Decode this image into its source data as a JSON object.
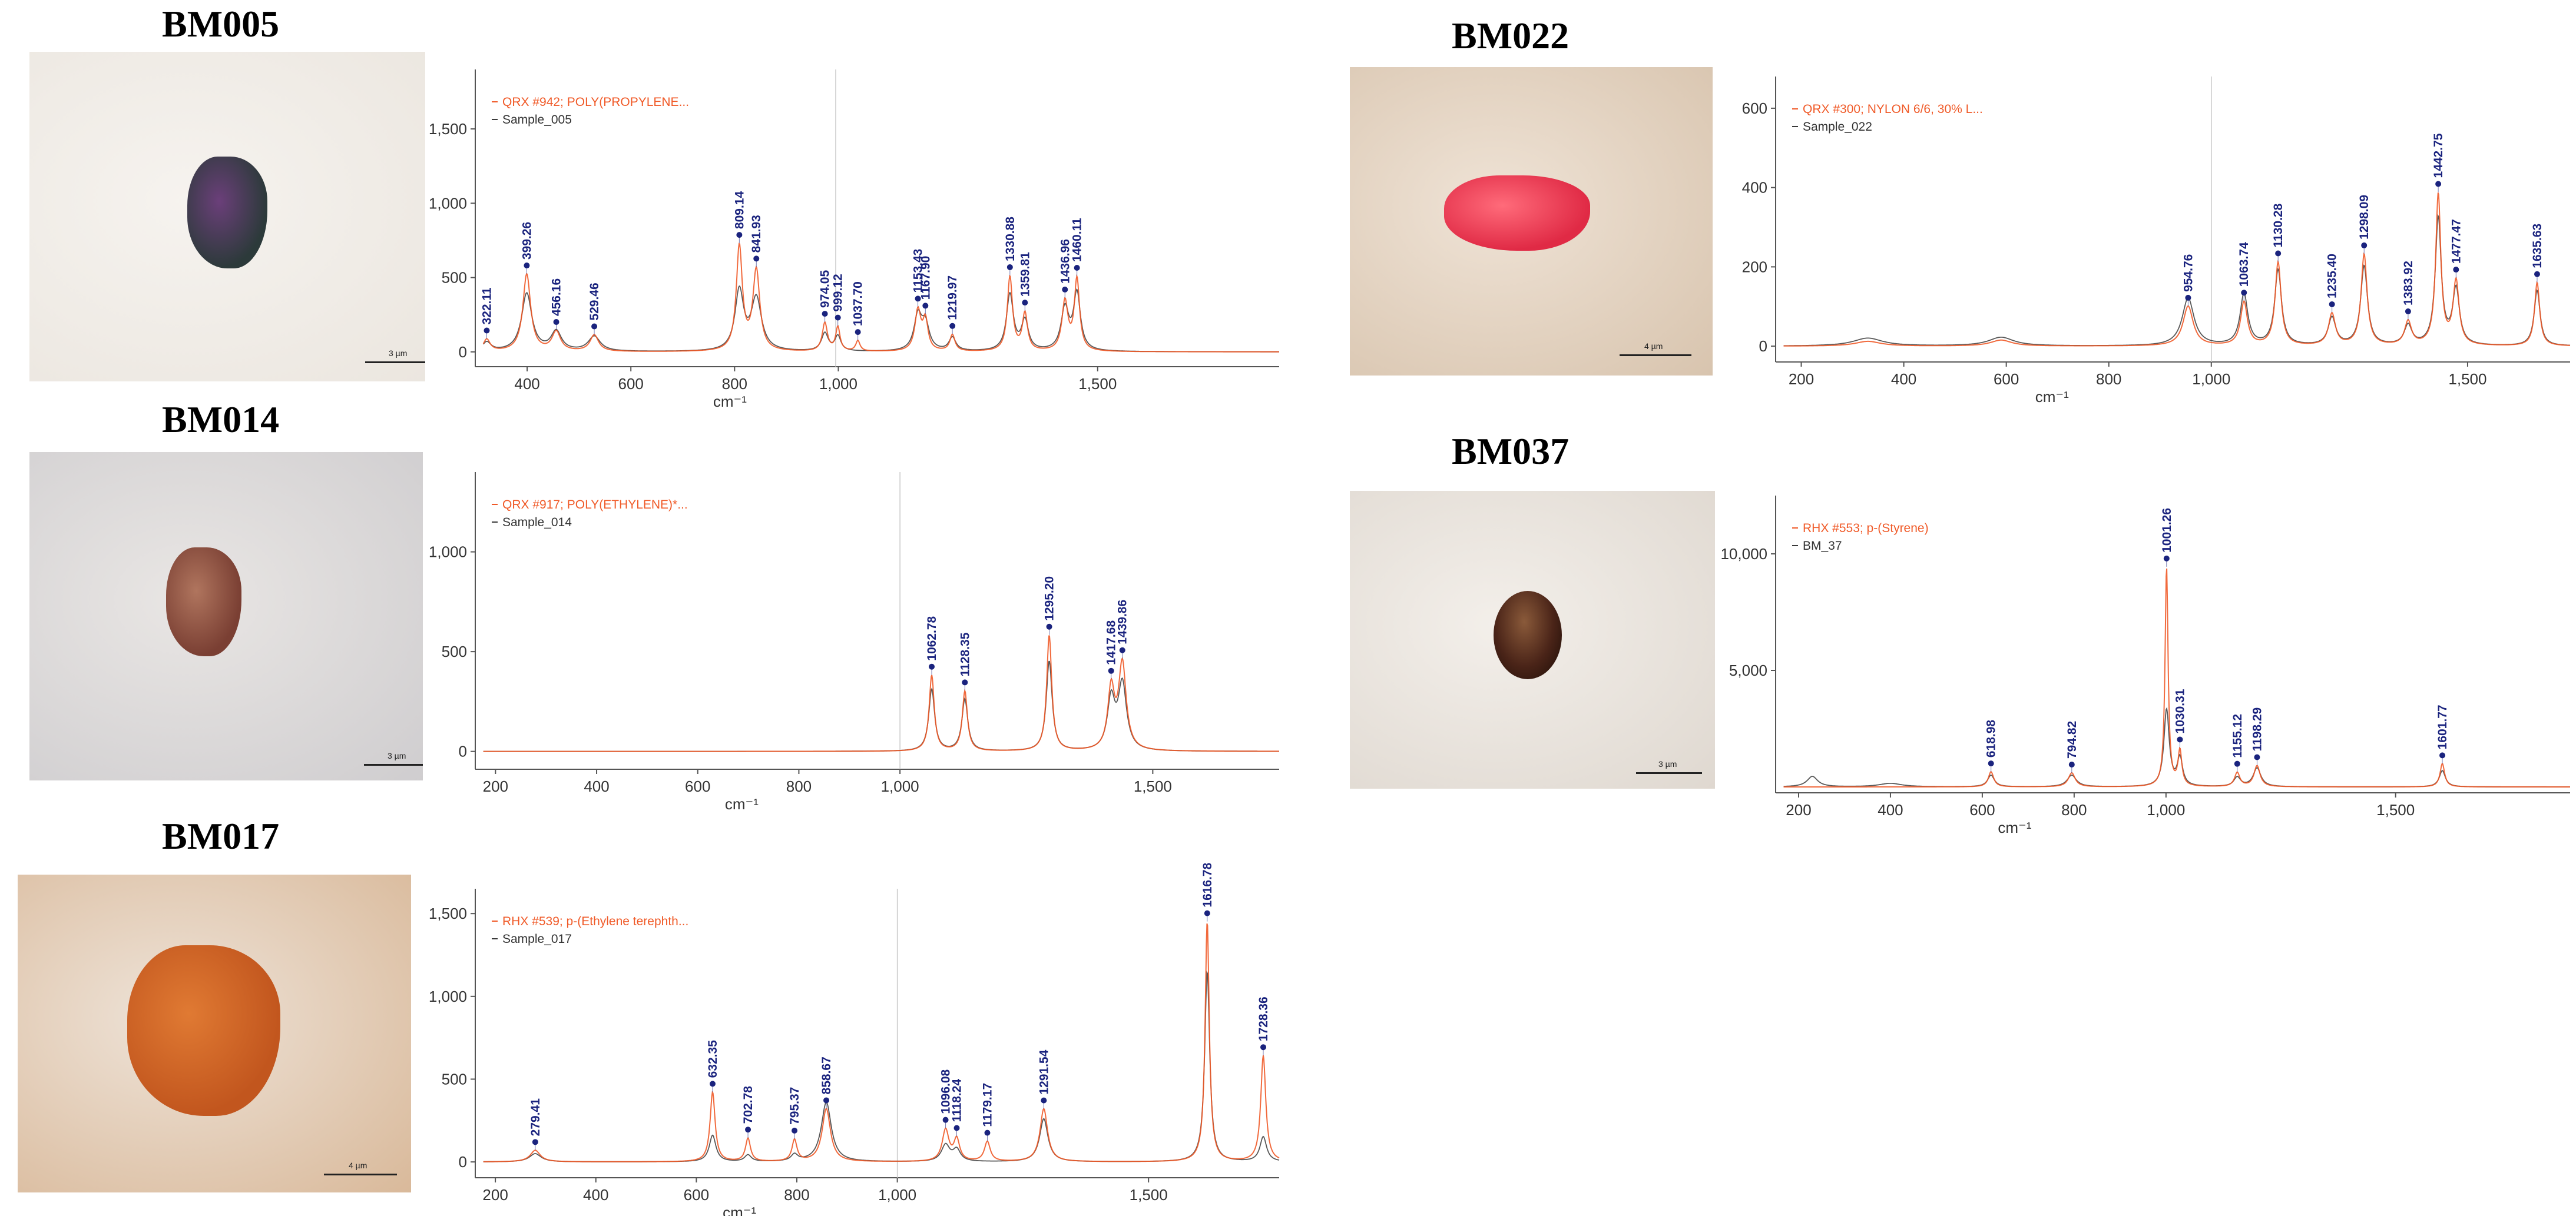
{
  "colors": {
    "reference": "#f05a28",
    "sample": "#3a3a3a",
    "peak": "#1a237e",
    "axis": "#555555"
  },
  "panels": [
    {
      "id": "BM005",
      "title": "BM005",
      "scale_label": "3 µm",
      "micro": {
        "bg": [
          "#f6f3ef",
          "#ebe6df"
        ],
        "particle_color": "#2c3a3a",
        "particle_highlight": "#6b3f7a",
        "shape": "blob"
      }
    },
    {
      "id": "BM014",
      "title": "BM014",
      "scale_label": "3 µm",
      "micro": {
        "bg": [
          "#e9e6e4",
          "#cfcdcf"
        ],
        "particle_color": "#7a3f33",
        "particle_highlight": "#b0755e",
        "shape": "blob"
      }
    },
    {
      "id": "BM017",
      "title": "BM017",
      "scale_label": "4 µm",
      "micro": {
        "bg": [
          "#eee3d8",
          "#d9b99a"
        ],
        "particle_color": "#c2561e",
        "particle_highlight": "#e07a33",
        "shape": "blob"
      }
    },
    {
      "id": "BM022",
      "title": "BM022",
      "scale_label": "4 µm",
      "micro": {
        "bg": [
          "#efe3d6",
          "#d8c4ae"
        ],
        "particle_color": "#e02a45",
        "particle_highlight": "#ff6b7a",
        "shape": "blob"
      }
    },
    {
      "id": "BM037",
      "title": "BM037",
      "scale_label": "3 µm",
      "micro": {
        "bg": [
          "#f3efea",
          "#dfd8d0"
        ],
        "particle_color": "#4a2418",
        "particle_highlight": "#8a5a3a",
        "shape": "ellipse"
      }
    }
  ],
  "chart_data": [
    {
      "id": "BM005",
      "type": "line",
      "xlabel": "cm⁻¹",
      "ylabel": "",
      "xlim": [
        300,
        1850
      ],
      "ylim": [
        -60,
        1900
      ],
      "xticks": [
        400,
        600,
        800,
        1000,
        1500
      ],
      "yticks": [
        0,
        500,
        1000,
        1500
      ],
      "xtick_labels": [
        "400",
        "600",
        "800",
        "1,000",
        "1,500"
      ],
      "ytick_labels": [
        "0",
        "500",
        "1,000",
        "1,500"
      ],
      "vline": 995,
      "series": [
        {
          "name": "QRX #942; POLY(PROPYLENE...",
          "role": "reference",
          "baseline": 0,
          "peaks": [
            [
              322.11,
              80,
              8
            ],
            [
              399.26,
              520,
              9
            ],
            [
              456.16,
              130,
              10
            ],
            [
              529.46,
              110,
              10
            ],
            [
              809.14,
              700,
              7
            ],
            [
              841.93,
              540,
              8
            ],
            [
              974.05,
              190,
              6
            ],
            [
              999.12,
              160,
              5
            ],
            [
              1037.7,
              70,
              5
            ],
            [
              1153.43,
              270,
              7
            ],
            [
              1167.9,
              200,
              6
            ],
            [
              1219.97,
              110,
              6
            ],
            [
              1330.88,
              500,
              6
            ],
            [
              1359.81,
              250,
              6
            ],
            [
              1436.96,
              330,
              7
            ],
            [
              1460.11,
              480,
              6
            ]
          ]
        },
        {
          "name": "Sample_005",
          "role": "sample",
          "baseline": 0,
          "peaks": [
            [
              322.11,
              60,
              10
            ],
            [
              399.26,
              390,
              12
            ],
            [
              456.16,
              130,
              12
            ],
            [
              529.46,
              100,
              14
            ],
            [
              809.14,
              400,
              10
            ],
            [
              841.93,
              350,
              12
            ],
            [
              974.05,
              120,
              8
            ],
            [
              999.12,
              100,
              7
            ],
            [
              1153.43,
              230,
              9
            ],
            [
              1167.9,
              170,
              9
            ],
            [
              1219.97,
              90,
              8
            ],
            [
              1330.88,
              380,
              8
            ],
            [
              1359.81,
              200,
              8
            ],
            [
              1436.96,
              280,
              9
            ],
            [
              1460.11,
              380,
              8
            ]
          ]
        }
      ],
      "peak_labels": [
        [
          322.11,
          "322.11"
        ],
        [
          399.26,
          "399.26"
        ],
        [
          456.16,
          "456.16"
        ],
        [
          529.46,
          "529.46"
        ],
        [
          809.14,
          "809.14"
        ],
        [
          841.93,
          "841.93"
        ],
        [
          974.05,
          "974.05"
        ],
        [
          999.12,
          "999.12"
        ],
        [
          1037.7,
          "1037.70"
        ],
        [
          1153.43,
          "1153.43"
        ],
        [
          1167.9,
          "1167.90"
        ],
        [
          1219.97,
          "1219.97"
        ],
        [
          1330.88,
          "1330.88"
        ],
        [
          1359.81,
          "1359.81"
        ],
        [
          1436.96,
          "1436.96"
        ],
        [
          1460.11,
          "1460.11"
        ]
      ]
    },
    {
      "id": "BM014",
      "type": "line",
      "xlabel": "cm⁻¹",
      "ylabel": "",
      "xlim": [
        160,
        1750
      ],
      "ylim": [
        -60,
        1400
      ],
      "xticks": [
        200,
        400,
        600,
        800,
        1000,
        1500
      ],
      "yticks": [
        0,
        500,
        1000
      ],
      "xtick_labels": [
        "200",
        "400",
        "600",
        "800",
        "1,000",
        "1,500"
      ],
      "ytick_labels": [
        "0",
        "500",
        "1,000"
      ],
      "vline": 1000,
      "series": [
        {
          "name": "QRX #917; POLY(ETHYLENE)*...",
          "role": "reference",
          "baseline": 0,
          "peaks": [
            [
              1062.78,
              380,
              6
            ],
            [
              1128.35,
              300,
              6
            ],
            [
              1295.2,
              580,
              6
            ],
            [
              1417.68,
              300,
              8
            ],
            [
              1439.86,
              430,
              9
            ]
          ]
        },
        {
          "name": "Sample_014",
          "role": "sample",
          "baseline": 0,
          "peaks": [
            [
              1062.78,
              310,
              7
            ],
            [
              1128.35,
              260,
              7
            ],
            [
              1295.2,
              450,
              7
            ],
            [
              1417.68,
              250,
              9
            ],
            [
              1439.86,
              330,
              10
            ]
          ]
        }
      ],
      "peak_labels": [
        [
          1062.78,
          "1062.78"
        ],
        [
          1128.35,
          "1128.35"
        ],
        [
          1295.2,
          "1295.20"
        ],
        [
          1417.68,
          "1417.68"
        ],
        [
          1439.86,
          "1439.86"
        ]
      ]
    },
    {
      "id": "BM017",
      "type": "line",
      "xlabel": "cm⁻¹",
      "ylabel": "",
      "xlim": [
        160,
        1760
      ],
      "ylim": [
        -60,
        1650
      ],
      "xticks": [
        200,
        400,
        600,
        800,
        1000,
        1500
      ],
      "yticks": [
        0,
        500,
        1000,
        1500
      ],
      "xtick_labels": [
        "200",
        "400",
        "600",
        "800",
        "1,000",
        "1,500"
      ],
      "ytick_labels": [
        "0",
        "500",
        "1,000",
        "1,500"
      ],
      "vline": 1000,
      "series": [
        {
          "name": "RHX #539; p-(Ethylene terephth...",
          "role": "reference",
          "baseline": 0,
          "peaks": [
            [
              279.41,
              70,
              12
            ],
            [
              632.35,
              420,
              6
            ],
            [
              702.78,
              140,
              6
            ],
            [
              795.37,
              130,
              6
            ],
            [
              858.67,
              320,
              10
            ],
            [
              1096.08,
              190,
              8
            ],
            [
              1118.24,
              130,
              7
            ],
            [
              1179.17,
              120,
              7
            ],
            [
              1291.54,
              320,
              9
            ],
            [
              1616.78,
              1450,
              5
            ],
            [
              1728.36,
              640,
              6
            ]
          ]
        },
        {
          "name": "Sample_017",
          "role": "sample",
          "baseline": 0,
          "peaks": [
            [
              279.41,
              50,
              14
            ],
            [
              632.35,
              160,
              8
            ],
            [
              702.78,
              40,
              8
            ],
            [
              795.37,
              40,
              8
            ],
            [
              858.67,
              360,
              12
            ],
            [
              1096.08,
              100,
              10
            ],
            [
              1118.24,
              70,
              9
            ],
            [
              1291.54,
              260,
              10
            ],
            [
              1616.78,
              1150,
              6
            ],
            [
              1728.36,
              150,
              8
            ]
          ]
        }
      ],
      "peak_labels": [
        [
          279.41,
          "279.41"
        ],
        [
          632.35,
          "632.35"
        ],
        [
          702.78,
          "702.78"
        ],
        [
          795.37,
          "795.37"
        ],
        [
          858.67,
          "858.67"
        ],
        [
          1096.08,
          "1096.08"
        ],
        [
          1118.24,
          "1118.24"
        ],
        [
          1179.17,
          "1179.17"
        ],
        [
          1291.54,
          "1291.54"
        ],
        [
          1616.78,
          "1616.78"
        ],
        [
          1728.36,
          "1728.36"
        ]
      ]
    },
    {
      "id": "BM022",
      "type": "line",
      "xlabel": "cm⁻¹",
      "ylabel": "",
      "xlim": [
        150,
        1700
      ],
      "ylim": [
        -25,
        680
      ],
      "xticks": [
        200,
        400,
        600,
        800,
        1000,
        1500
      ],
      "yticks": [
        0,
        200,
        400,
        600
      ],
      "xtick_labels": [
        "200",
        "400",
        "600",
        "800",
        "1,000",
        "1,500"
      ],
      "ytick_labels": [
        "0",
        "200",
        "400",
        "600"
      ],
      "vline": 1000,
      "series": [
        {
          "name": "QRX #300; NYLON 6/6, 30% L...",
          "role": "reference",
          "baseline": 0,
          "peaks": [
            [
              330,
              12,
              30
            ],
            [
              590,
              15,
              25
            ],
            [
              954.76,
              100,
              12
            ],
            [
              1063.74,
              110,
              8
            ],
            [
              1130.28,
              210,
              7
            ],
            [
              1235.4,
              80,
              8
            ],
            [
              1298.09,
              230,
              7
            ],
            [
              1383.92,
              60,
              8
            ],
            [
              1442.75,
              380,
              6
            ],
            [
              1477.47,
              160,
              7
            ],
            [
              1635.63,
              160,
              6
            ]
          ]
        },
        {
          "name": "Sample_022",
          "role": "sample",
          "baseline": 0,
          "peaks": [
            [
              330,
              20,
              35
            ],
            [
              590,
              22,
              30
            ],
            [
              954.76,
              120,
              14
            ],
            [
              1063.74,
              130,
              9
            ],
            [
              1130.28,
              190,
              8
            ],
            [
              1235.4,
              70,
              9
            ],
            [
              1298.09,
              200,
              8
            ],
            [
              1383.92,
              50,
              9
            ],
            [
              1442.75,
              320,
              7
            ],
            [
              1477.47,
              140,
              8
            ],
            [
              1635.63,
              140,
              7
            ]
          ]
        }
      ],
      "peak_labels": [
        [
          954.76,
          "954.76"
        ],
        [
          1063.74,
          "1063.74"
        ],
        [
          1130.28,
          "1130.28"
        ],
        [
          1235.4,
          "1235.40"
        ],
        [
          1298.09,
          "1298.09"
        ],
        [
          1383.92,
          "1383.92"
        ],
        [
          1442.75,
          "1442.75"
        ],
        [
          1477.47,
          "1477.47"
        ],
        [
          1635.63,
          "1635.63"
        ]
      ]
    },
    {
      "id": "BM037",
      "type": "line",
      "xlabel": "cm⁻¹",
      "ylabel": "",
      "xlim": [
        150,
        1880
      ],
      "ylim": [
        0,
        12500
      ],
      "xticks": [
        200,
        400,
        600,
        800,
        1000,
        1500
      ],
      "yticks": [
        5000,
        10000
      ],
      "xtick_labels": [
        "200",
        "400",
        "600",
        "800",
        "1,000",
        "1,500"
      ],
      "ytick_labels": [
        "5,000",
        "10,000"
      ],
      "vline": null,
      "series": [
        {
          "name": "RHX #553; p-(Styrene)",
          "role": "reference",
          "baseline": 0,
          "peaks": [
            [
              618.98,
              650,
              7
            ],
            [
              794.82,
              600,
              9
            ],
            [
              1001.26,
              9400,
              4
            ],
            [
              1030.31,
              1500,
              5
            ],
            [
              1155.12,
              600,
              7
            ],
            [
              1198.29,
              900,
              8
            ],
            [
              1601.77,
              1000,
              6
            ]
          ]
        },
        {
          "name": "BM_37",
          "role": "sample",
          "baseline": 0,
          "peaks": [
            [
              230,
              450,
              14
            ],
            [
              400,
              150,
              30
            ],
            [
              618.98,
              500,
              9
            ],
            [
              794.82,
              500,
              12
            ],
            [
              1001.26,
              3300,
              7
            ],
            [
              1030.31,
              1200,
              7
            ],
            [
              1155.12,
              400,
              9
            ],
            [
              1198.29,
              800,
              10
            ],
            [
              1601.77,
              700,
              8
            ]
          ]
        }
      ],
      "peak_labels": [
        [
          618.98,
          "618.98"
        ],
        [
          794.82,
          "794.82"
        ],
        [
          1001.26,
          "1001.26"
        ],
        [
          1030.31,
          "1030.31"
        ],
        [
          1155.12,
          "1155.12"
        ],
        [
          1198.29,
          "1198.29"
        ],
        [
          1601.77,
          "1601.77"
        ]
      ]
    }
  ]
}
